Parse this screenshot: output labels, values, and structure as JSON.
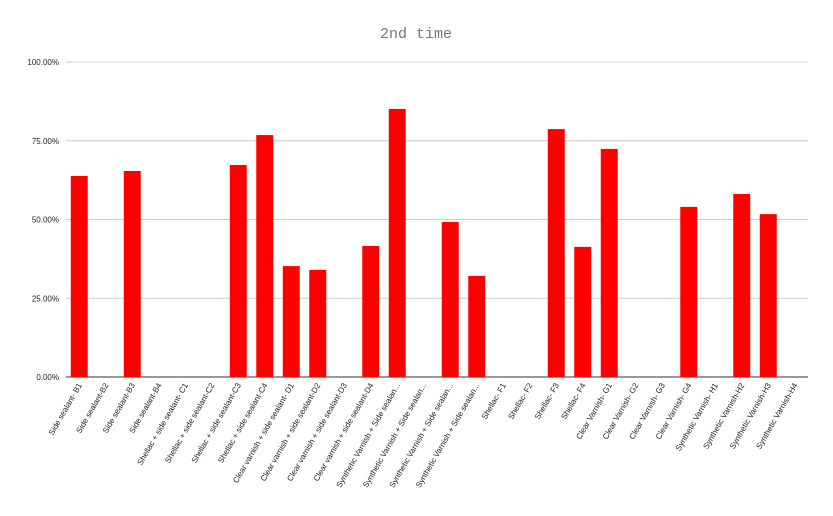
{
  "chart_data": {
    "type": "bar",
    "title": "2nd time",
    "categories": [
      "Side sealant- B1",
      "Side sealant-B2",
      "Side sealant-B3",
      "Side sealant-B4",
      "Shellac + side sealant- C1",
      "Shellac + side sealant-C2",
      "Shellac + side sealant-C3",
      "Shellac + side sealant-C4",
      "Clear varnish + side sealant- D1",
      "Clear varnish + side sealant-D2",
      "Clear varnish + side sealant-D3",
      "Clear varnish + side sealant-D4",
      "Synthetic Varnish + Side sealan...",
      "Synthetic Varnish + Side sealan...",
      "Synthetic Varnish + Side sealan...",
      "Synthetic Varnish + Side sealan...",
      "Shellac- F1",
      "Shellac- F2",
      "Shellac- F3",
      "Shellac- F4",
      "Clear Varnish- G1",
      "Clear Varnish- G2",
      "Clear Varnish- G3",
      "Clear Varnish- G4",
      "Synthetic Varnish- H1",
      "Synthetic Varnish-H2",
      "Synthetic Varnish-H3",
      "Synthetic Varnish-H4"
    ],
    "values": [
      63.8,
      null,
      65.4,
      null,
      null,
      null,
      67.3,
      76.8,
      35.2,
      34.0,
      null,
      41.6,
      85.1,
      null,
      49.2,
      32.1,
      null,
      null,
      78.7,
      41.3,
      72.4,
      null,
      null,
      54.0,
      null,
      58.1,
      51.7,
      null
    ],
    "color": "#ff0000",
    "ylim": [
      0,
      100
    ],
    "yticks": [
      {
        "value": 0,
        "label": "0.00%"
      },
      {
        "value": 25,
        "label": "25.00%"
      },
      {
        "value": 50,
        "label": "50.00%"
      },
      {
        "value": 75,
        "label": "75.00%"
      },
      {
        "value": 100,
        "label": "100.00%"
      }
    ],
    "grid": true
  }
}
